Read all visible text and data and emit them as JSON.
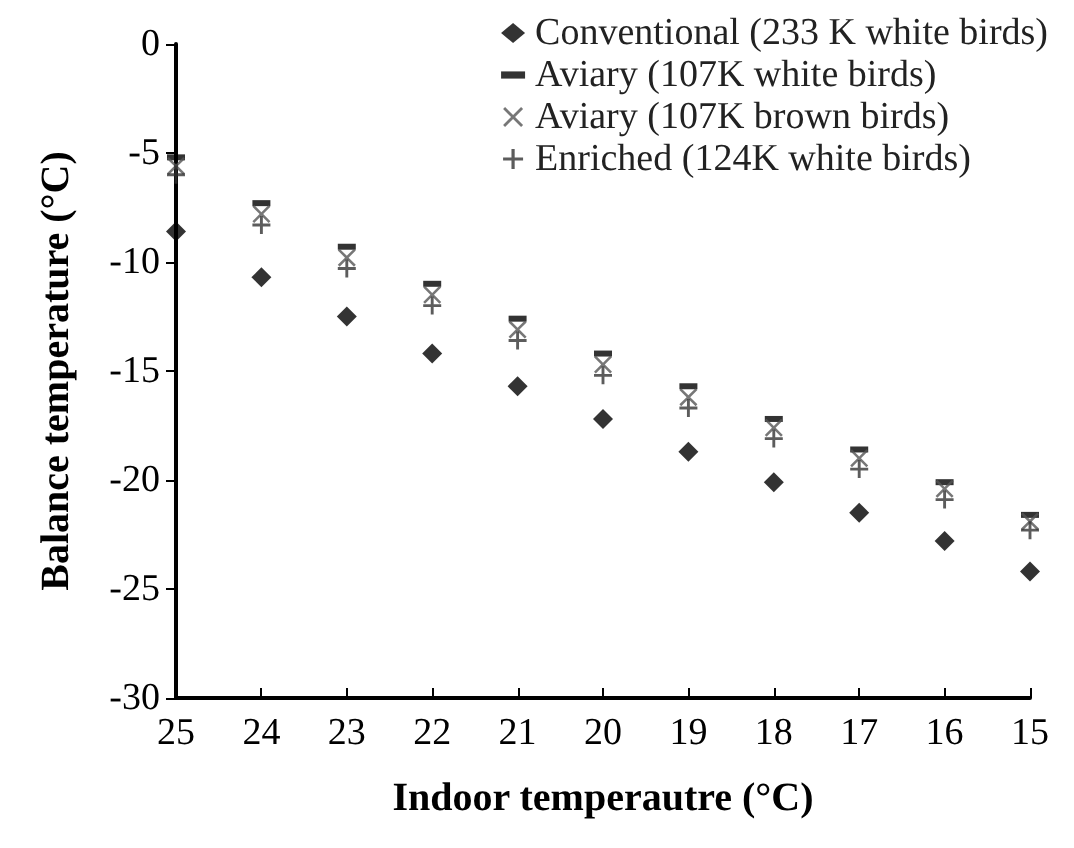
{
  "chart_data": {
    "type": "scatter",
    "xlabel": "Indoor temperautre (°C)",
    "ylabel": "Balance temperature (°C)",
    "x": [
      25,
      24,
      23,
      22,
      21,
      20,
      19,
      18,
      17,
      16,
      15
    ],
    "series": [
      {
        "name": "Conventional (233 K white birds)",
        "color": "#000000",
        "marker": "diamond",
        "values": [
          -8.6,
          -10.7,
          -12.5,
          -14.2,
          -15.7,
          -17.2,
          -18.7,
          -20.1,
          -21.5,
          -22.8,
          -24.2
        ]
      },
      {
        "name": "Aviary (107K white birds)",
        "color": "#000000",
        "marker": "square",
        "values": [
          -5.2,
          -7.3,
          -9.3,
          -11.0,
          -12.6,
          -14.2,
          -15.7,
          -17.2,
          -18.6,
          -20.1,
          -21.6
        ]
      },
      {
        "name": "Aviary (107K brown birds)",
        "color": "#555555",
        "marker": "cross",
        "values": [
          -5.6,
          -7.8,
          -9.8,
          -11.5,
          -13.1,
          -14.7,
          -16.2,
          -17.6,
          -19.0,
          -20.4,
          -21.9
        ]
      },
      {
        "name": "Enriched (124K white birds)",
        "color": "#333333",
        "marker": "plus",
        "values": [
          -6.0,
          -8.3,
          -10.3,
          -12.0,
          -13.6,
          -15.2,
          -16.7,
          -18.1,
          -19.5,
          -20.9,
          -22.3
        ]
      }
    ],
    "xlim": [
      25,
      15
    ],
    "xticks": [
      25,
      24,
      23,
      22,
      21,
      20,
      19,
      18,
      17,
      16,
      15
    ],
    "ylim": [
      -30,
      0
    ],
    "yticks": [
      -30,
      -25,
      -20,
      -15,
      -10,
      -5,
      0
    ],
    "grid": false,
    "legend": "top right"
  }
}
